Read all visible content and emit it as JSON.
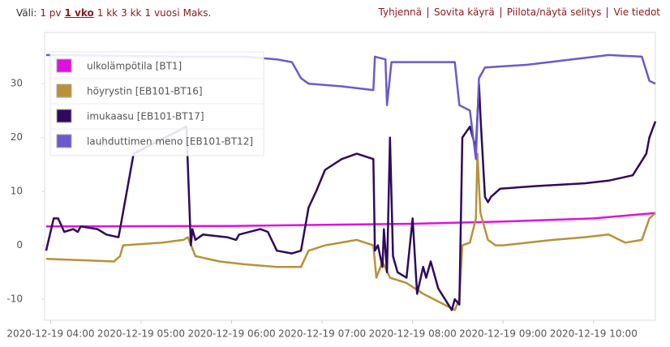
{
  "toolbar": {
    "range_label": "Väli:",
    "options": [
      "1 pv",
      "1 vko",
      "1 kk",
      "3 kk",
      "1 vuosi",
      "Maks."
    ],
    "selected_index": 1,
    "actions": [
      "Tyhjennä",
      "Sovita käyrä",
      "Piilota/näytä selitys",
      "Vie tiedot"
    ]
  },
  "chart_data": {
    "type": "line",
    "legend": "upper-left",
    "grid": false,
    "xlim": [
      "2020-12-19 03:56",
      "2020-12-19 10:41"
    ],
    "xticks": [
      "2020-12-19 04:00",
      "2020-12-19 05:00",
      "2020-12-19 06:00",
      "2020-12-19 07:00",
      "2020-12-19 08:00",
      "2020-12-19 09:00",
      "2020-12-19 10:00"
    ],
    "ylim": [
      -13.9,
      39.5
    ],
    "yticks": [
      -10,
      0,
      10,
      20,
      30
    ],
    "series": [
      {
        "name": "ulkolämpötila [BT1]",
        "color": "#e010e0",
        "x": [
          "2020-12-19 03:57",
          "2020-12-19 06:00",
          "2020-12-19 08:00",
          "2020-12-19 09:00",
          "2020-12-19 10:00",
          "2020-12-19 10:41"
        ],
        "values": [
          3.5,
          3.6,
          4.0,
          4.4,
          5.0,
          6.0
        ]
      },
      {
        "name": "höyrystin [EB101-BT16]",
        "color": "#b8913a",
        "x": [
          "2020-12-19 03:57",
          "2020-12-19 04:42",
          "2020-12-19 04:46",
          "2020-12-19 04:48",
          "2020-12-19 05:14",
          "2020-12-19 05:28",
          "2020-12-19 05:31",
          "2020-12-19 05:36",
          "2020-12-19 05:52",
          "2020-12-19 06:08",
          "2020-12-19 06:30",
          "2020-12-19 06:46",
          "2020-12-19 06:51",
          "2020-12-19 07:02",
          "2020-12-19 07:23",
          "2020-12-19 07:34",
          "2020-12-19 07:36",
          "2020-12-19 07:40",
          "2020-12-19 07:45",
          "2020-12-19 07:56",
          "2020-12-19 08:07",
          "2020-12-19 08:28",
          "2020-12-19 08:31",
          "2020-12-19 08:33",
          "2020-12-19 08:38",
          "2020-12-19 08:42",
          "2020-12-19 08:43",
          "2020-12-19 08:45",
          "2020-12-19 08:50",
          "2020-12-19 08:55",
          "2020-12-19 09:00",
          "2020-12-19 09:33",
          "2020-12-19 09:54",
          "2020-12-19 10:10",
          "2020-12-19 10:21",
          "2020-12-19 10:32",
          "2020-12-19 10:37",
          "2020-12-19 10:41"
        ],
        "values": [
          -2.5,
          -3,
          -2,
          0,
          0.5,
          1,
          1.5,
          -2,
          -3,
          -3.5,
          -4,
          -4,
          -1,
          0,
          1,
          0,
          -6,
          -3,
          -6,
          -7,
          -9,
          -12,
          -10,
          0,
          0.5,
          5,
          17,
          6,
          1,
          0,
          0,
          1,
          1.5,
          2,
          0.5,
          1,
          5,
          6
        ]
      },
      {
        "name": "imukaasu [EB101-BT17]",
        "color": "#2e0a5e",
        "x": [
          "2020-12-19 03:57",
          "2020-12-19 04:02",
          "2020-12-19 04:05",
          "2020-12-19 04:09",
          "2020-12-19 04:15",
          "2020-12-19 04:18",
          "2020-12-19 04:20",
          "2020-12-19 04:31",
          "2020-12-19 04:37",
          "2020-12-19 04:45",
          "2020-12-19 04:46",
          "2020-12-19 04:55",
          "2020-12-19 05:09",
          "2020-12-19 05:30",
          "2020-12-19 05:33",
          "2020-12-19 05:34",
          "2020-12-19 05:36",
          "2020-12-19 05:41",
          "2020-12-19 05:57",
          "2020-12-19 06:03",
          "2020-12-19 06:05",
          "2020-12-19 06:19",
          "2020-12-19 06:24",
          "2020-12-19 06:30",
          "2020-12-19 06:40",
          "2020-12-19 06:46",
          "2020-12-19 06:51",
          "2020-12-19 06:56",
          "2020-12-19 07:02",
          "2020-12-19 07:13",
          "2020-12-19 07:23",
          "2020-12-19 07:34",
          "2020-12-19 07:35",
          "2020-12-19 07:37",
          "2020-12-19 07:40",
          "2020-12-19 07:41",
          "2020-12-19 07:43",
          "2020-12-19 07:45",
          "2020-12-19 07:47",
          "2020-12-19 07:50",
          "2020-12-19 07:56",
          "2020-12-19 08:00",
          "2020-12-19 08:03",
          "2020-12-19 08:07",
          "2020-12-19 08:09",
          "2020-12-19 08:12",
          "2020-12-19 08:17",
          "2020-12-19 08:26",
          "2020-12-19 08:28",
          "2020-12-19 08:31",
          "2020-12-19 08:33",
          "2020-12-19 08:38",
          "2020-12-19 08:42",
          "2020-12-19 08:44",
          "2020-12-19 08:45",
          "2020-12-19 08:48",
          "2020-12-19 08:50",
          "2020-12-19 08:52",
          "2020-12-19 08:58",
          "2020-12-19 09:22",
          "2020-12-19 09:54",
          "2020-12-19 10:10",
          "2020-12-19 10:26",
          "2020-12-19 10:35",
          "2020-12-19 10:37",
          "2020-12-19 10:41"
        ],
        "values": [
          -1,
          5,
          5,
          2.5,
          3,
          2.5,
          3.5,
          3,
          2,
          1.5,
          3,
          17,
          19,
          22,
          0,
          3,
          1,
          2,
          1.5,
          1,
          2,
          3,
          2.5,
          -1,
          -1.5,
          -1,
          7,
          10,
          14,
          16,
          17,
          16,
          -1,
          0,
          -4,
          3,
          -5,
          20,
          -2,
          -5,
          -6,
          5,
          -9,
          -4,
          -6,
          -3,
          -8,
          -12,
          -10,
          -11,
          20,
          22,
          18,
          30,
          24,
          9,
          8,
          9,
          10.5,
          11,
          11.5,
          12,
          13,
          17,
          20,
          23
        ]
      },
      {
        "name": "lauhduttimen meno [EB101-BT12]",
        "color": "#6a5acd",
        "x": [
          "2020-12-19 03:57",
          "2020-12-19 05:30",
          "2020-12-19 06:08",
          "2020-12-19 06:30",
          "2020-12-19 06:40",
          "2020-12-19 06:46",
          "2020-12-19 06:51",
          "2020-12-19 07:13",
          "2020-12-19 07:34",
          "2020-12-19 07:35",
          "2020-12-19 07:42",
          "2020-12-19 07:43",
          "2020-12-19 07:46",
          "2020-12-19 08:28",
          "2020-12-19 08:31",
          "2020-12-19 08:38",
          "2020-12-19 08:42",
          "2020-12-19 08:44",
          "2020-12-19 08:48",
          "2020-12-19 09:16",
          "2020-12-19 10:10",
          "2020-12-19 10:32",
          "2020-12-19 10:37",
          "2020-12-19 10:41"
        ],
        "values": [
          35.3,
          35,
          35,
          34.5,
          34,
          31,
          30,
          29.5,
          28.8,
          35,
          34.5,
          26,
          34,
          34,
          26,
          25,
          16,
          31,
          33,
          33.5,
          35.3,
          35,
          30.5,
          30
        ]
      }
    ]
  }
}
